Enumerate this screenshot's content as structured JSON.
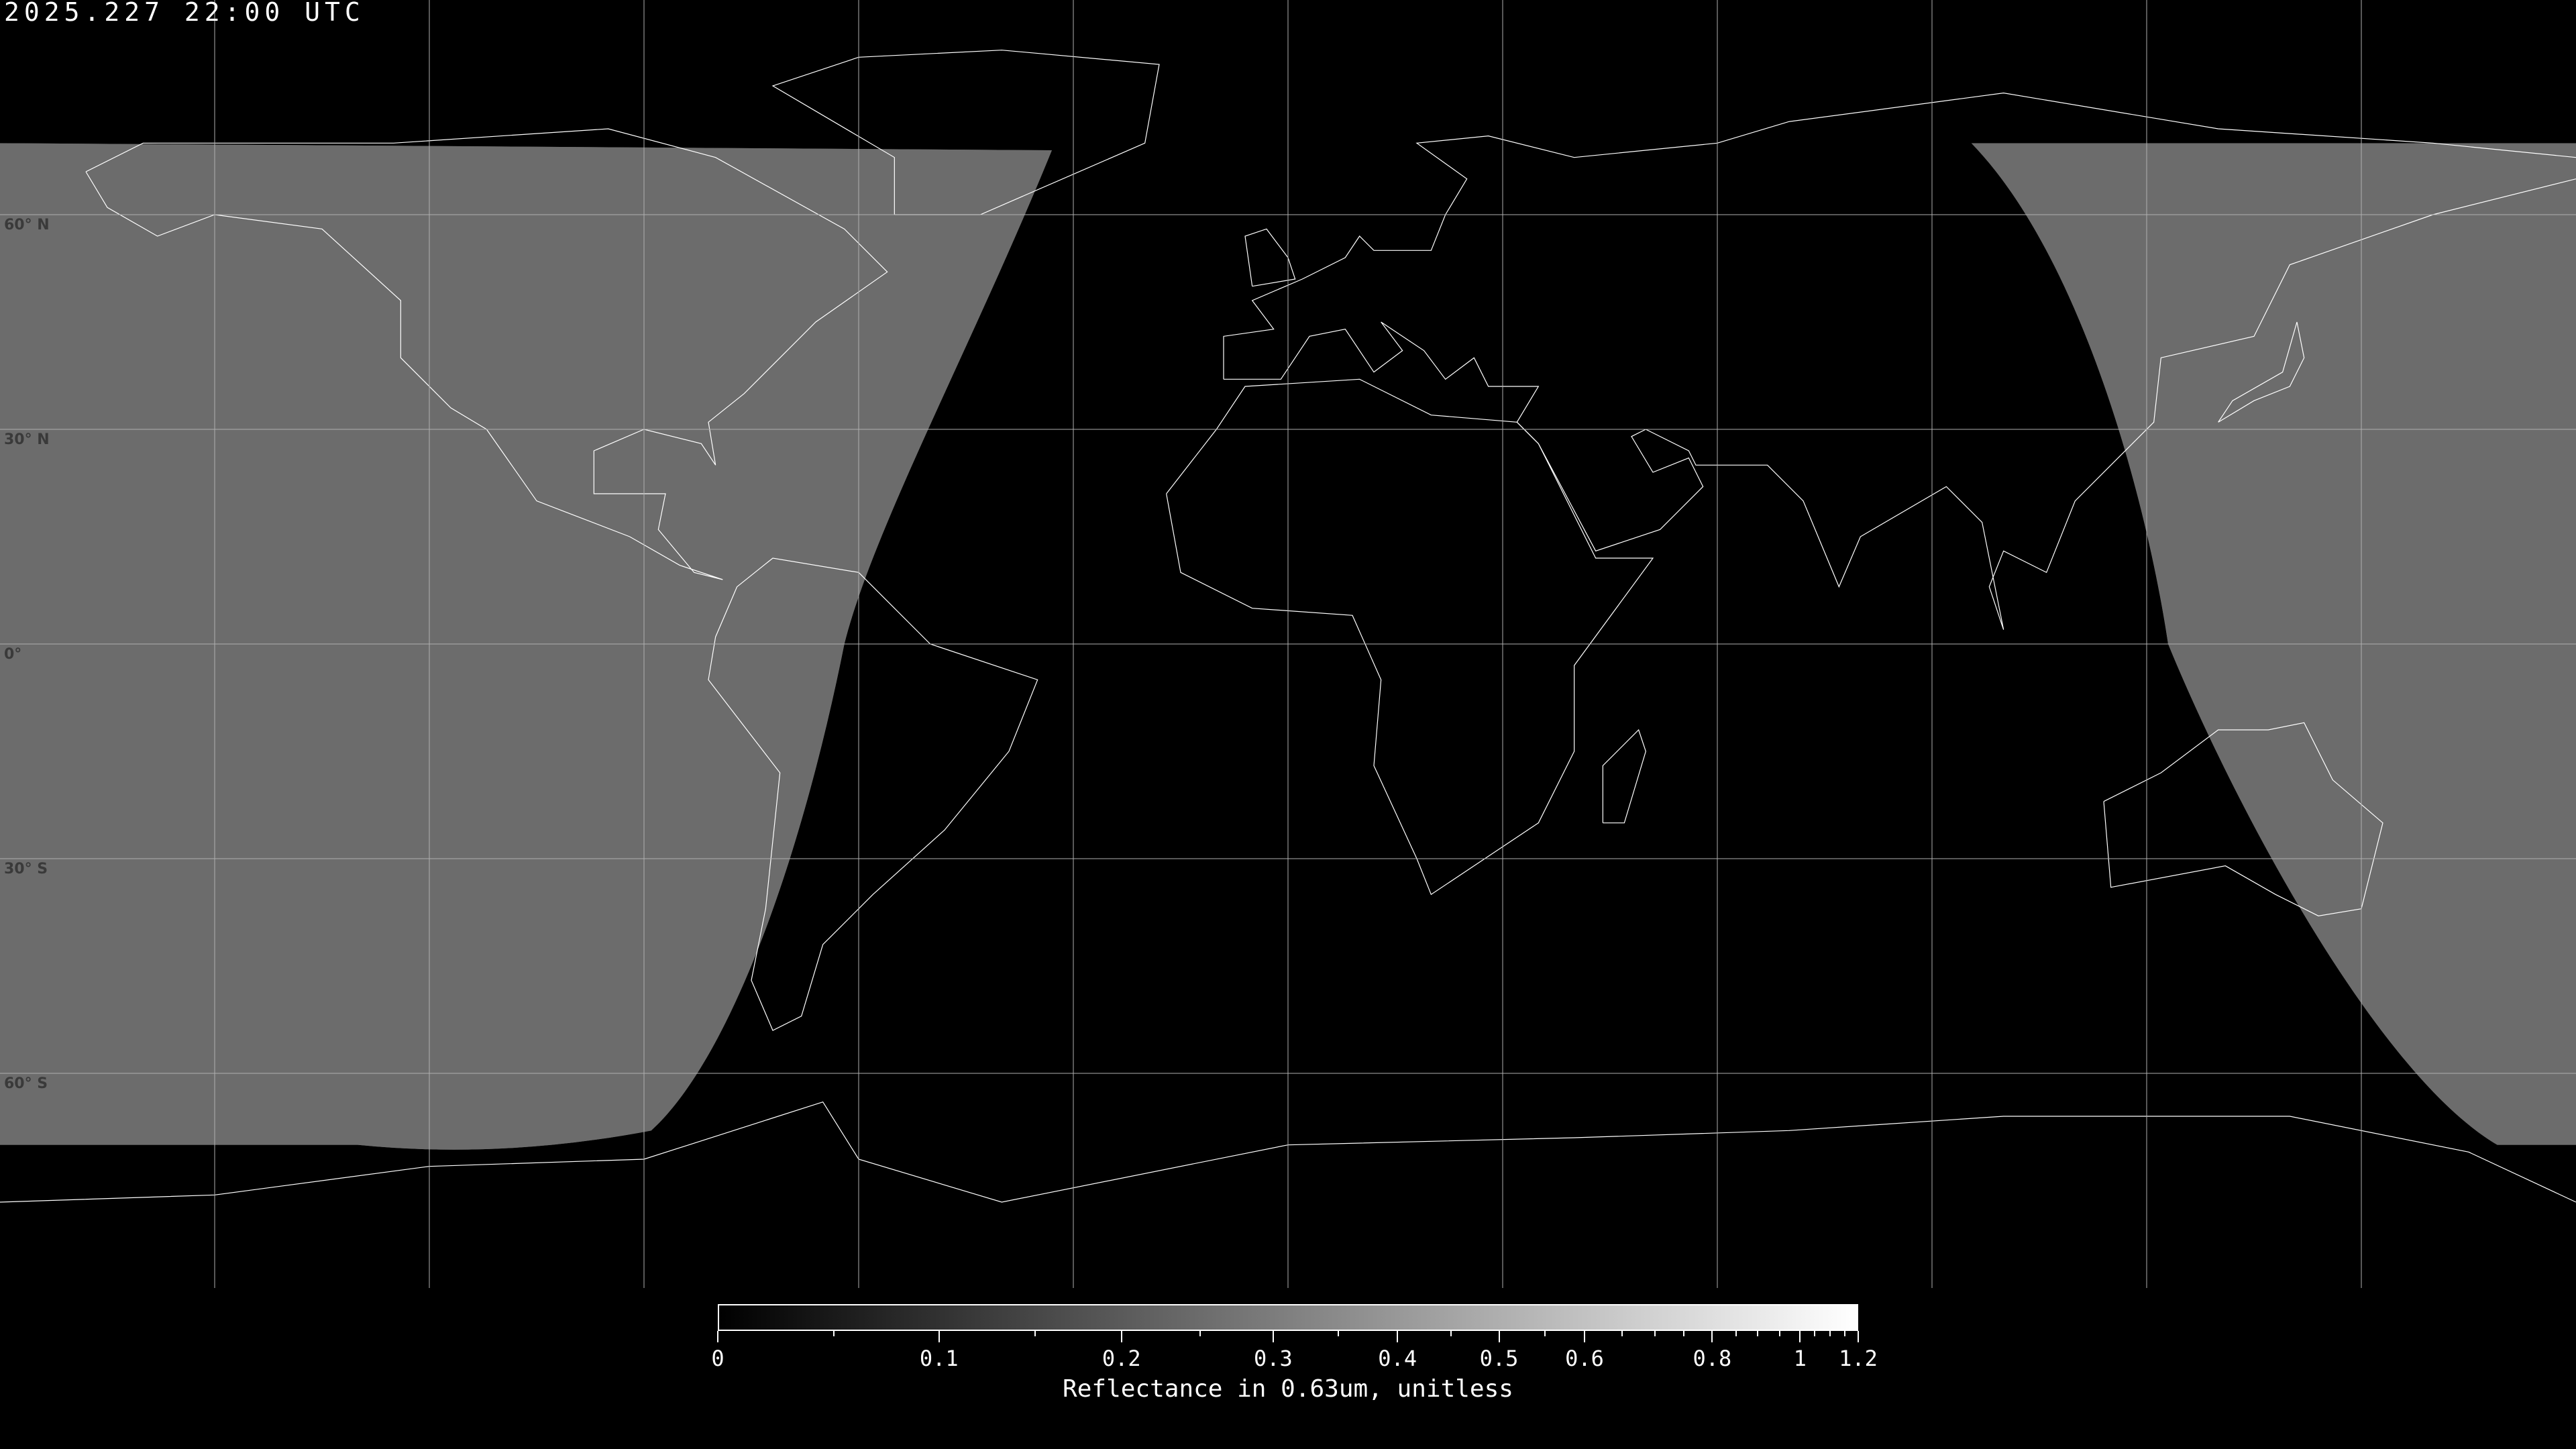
{
  "timestamp": "2025.227 22:00 UTC",
  "latitude_labels": [
    "60° N",
    "30° N",
    "0°",
    "30° S",
    "60° S"
  ],
  "map": {
    "projection": "equirectangular",
    "gridline_spacing_deg": 30,
    "coastline_color": "#ffffff",
    "gridline_color": "#b0b0b0",
    "night_color": "#000000"
  },
  "colorbar": {
    "title": "Reflectance in 0.63um, unitless",
    "range": [
      0,
      1.2
    ],
    "colormap": "grayscale",
    "tick_labels": [
      "0",
      "0.1",
      "0.2",
      "0.3",
      "0.4",
      "0.5",
      "0.6",
      "0.8",
      "1",
      "1.2"
    ]
  }
}
